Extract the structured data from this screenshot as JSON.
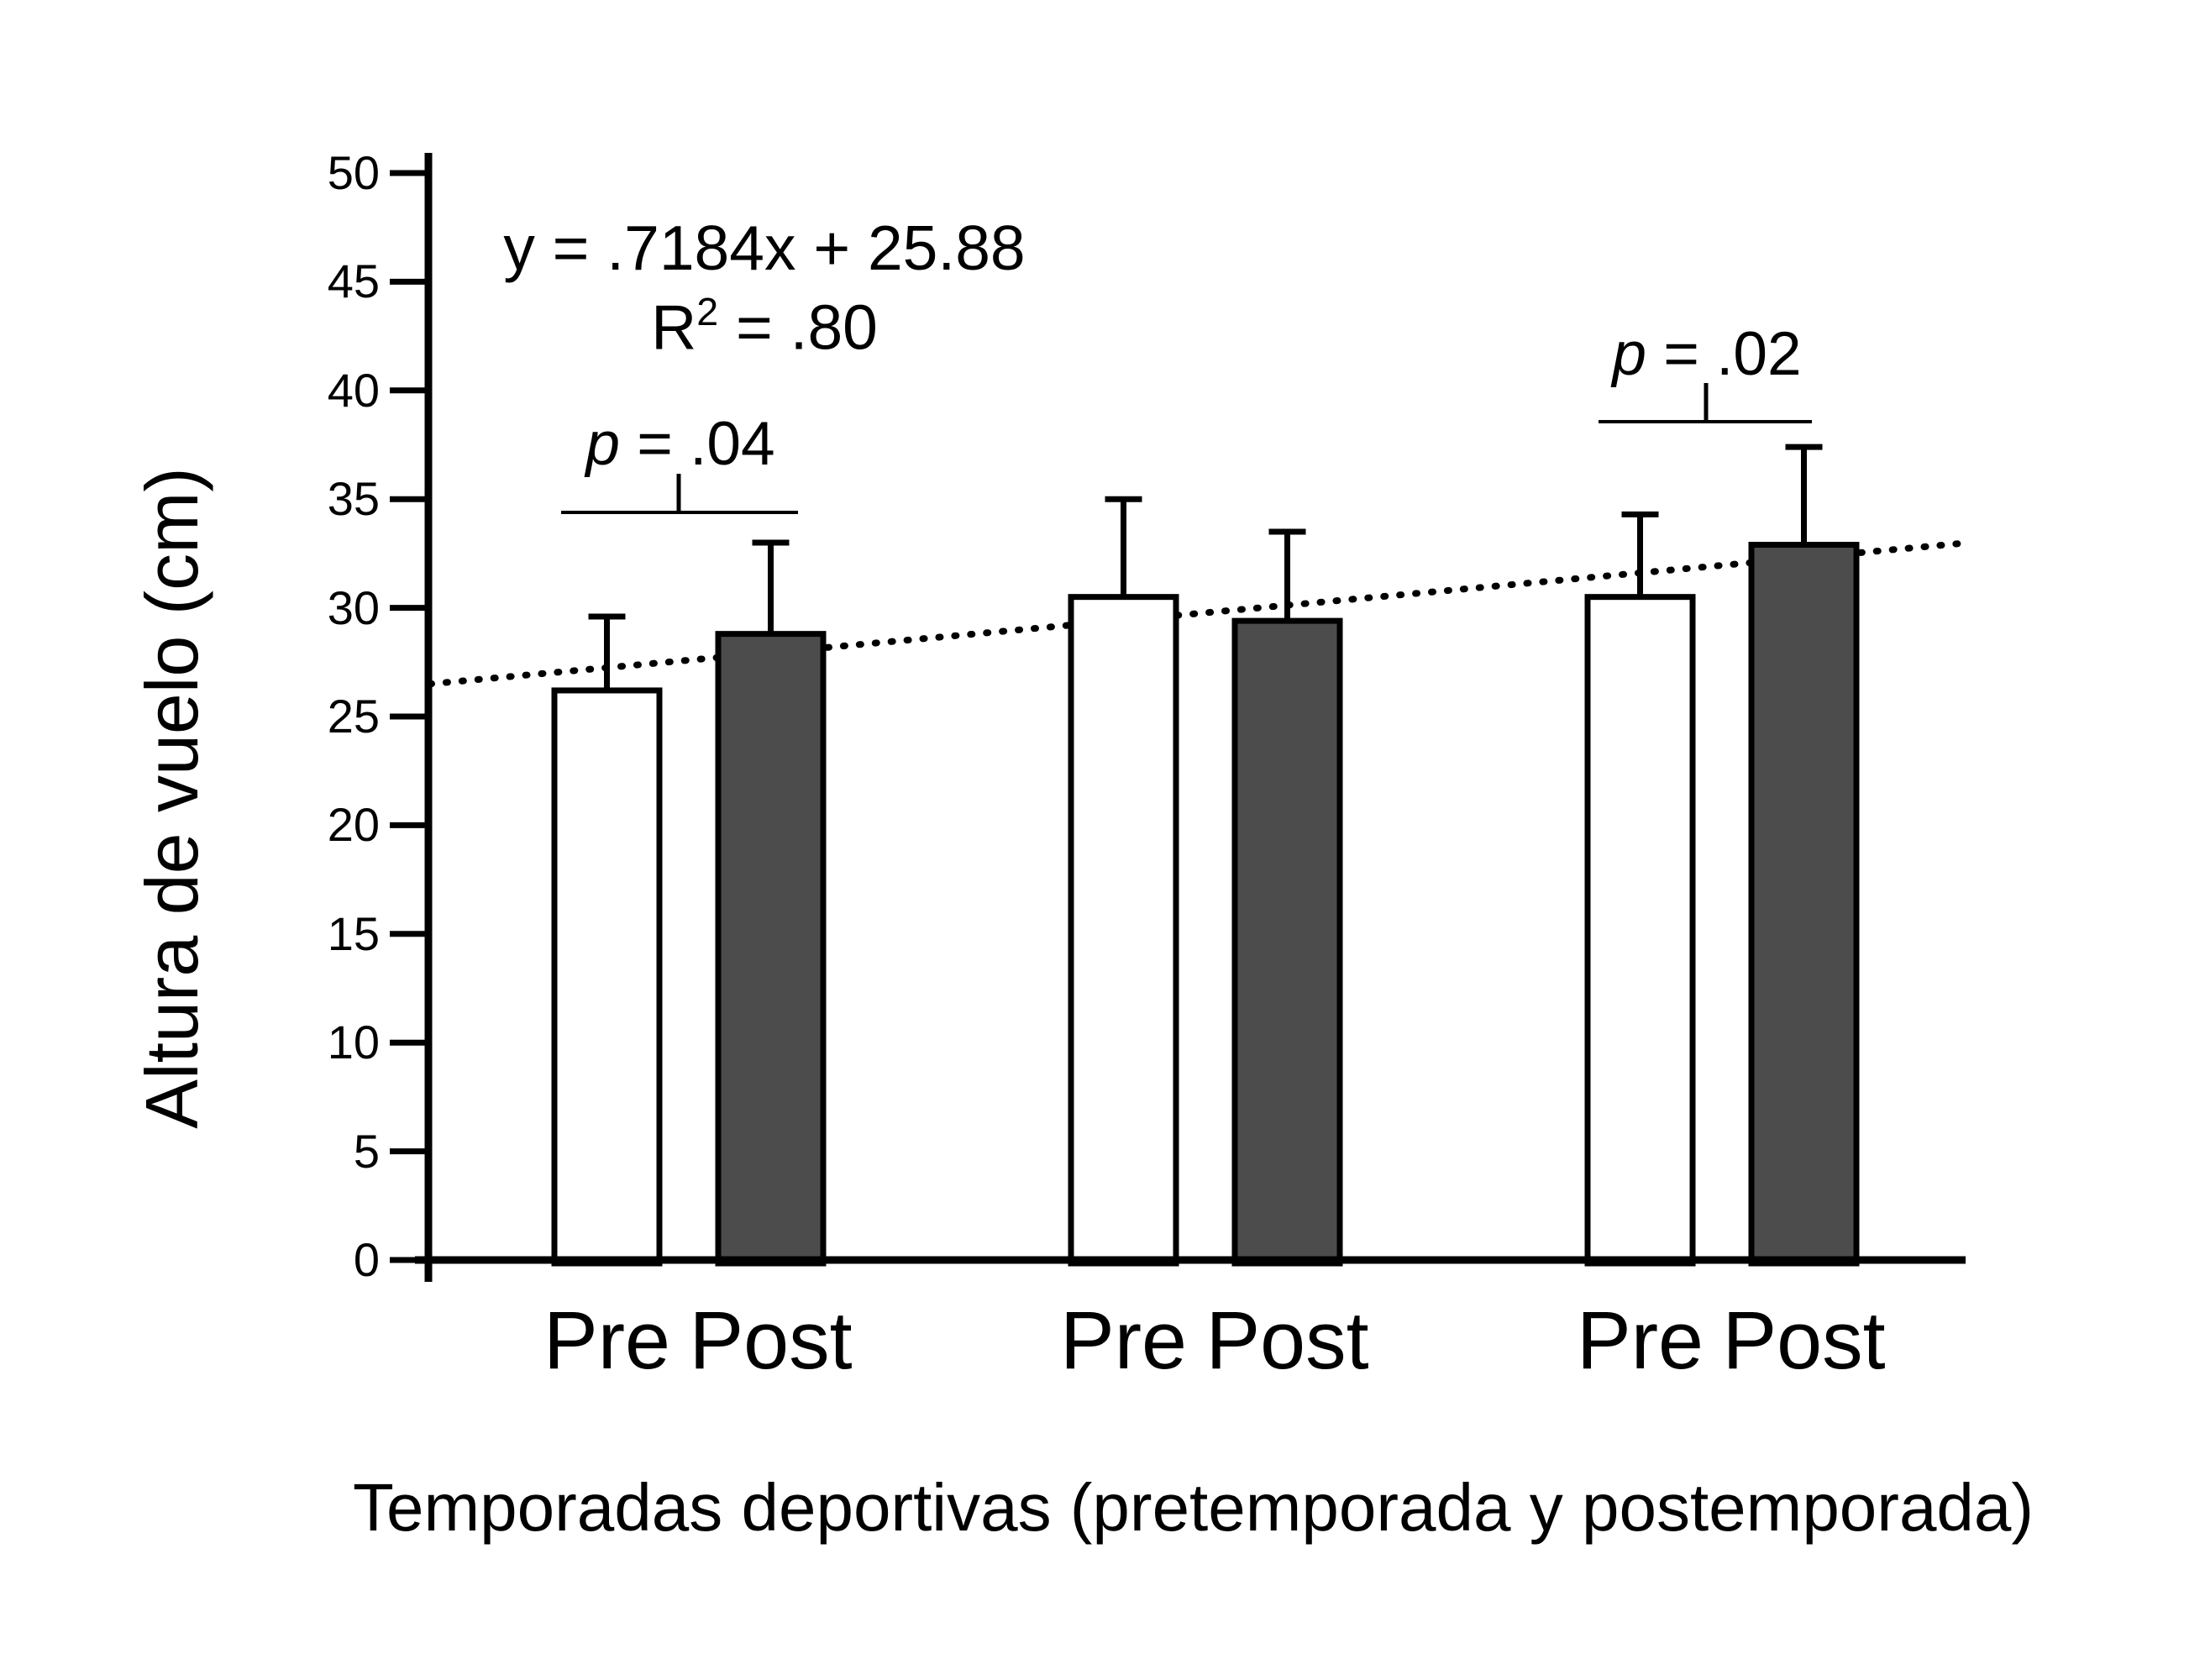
{
  "chart_data": {
    "type": "bar",
    "title": "",
    "ylabel": "Altura de vuelo (cm)",
    "xlabel": "Temporadas deportivas (pretemporada y postemporada)",
    "ylim": [
      0,
      50
    ],
    "yticks": [
      0,
      5,
      10,
      15,
      20,
      25,
      30,
      35,
      40,
      45,
      50
    ],
    "grid": false,
    "legend": "none",
    "bar_colors": {
      "pre": "#ffffff",
      "post": "#4c4c4c"
    },
    "bar_border_color": "#000000",
    "groups": [
      {
        "categories": [
          "Pre",
          "Post"
        ],
        "values": [
          26.2,
          28.8
        ],
        "error_upper": [
          3.4,
          4.2
        ]
      },
      {
        "categories": [
          "Pre",
          "Post"
        ],
        "values": [
          30.5,
          29.4
        ],
        "error_upper": [
          4.5,
          4.1
        ]
      },
      {
        "categories": [
          "Pre",
          "Post"
        ],
        "values": [
          30.5,
          32.9
        ],
        "error_upper": [
          3.8,
          4.5
        ]
      }
    ],
    "trendline": {
      "style": "dotted",
      "color": "#000000",
      "start_value": 26.5,
      "end_value": 33.0,
      "equation_text": "y = .7184x + 25.88",
      "r2_prefix": "R",
      "r2_superscript": "2",
      "r2_value_text": " = .80"
    },
    "annotations": [
      {
        "italic": "p",
        "text": " = .04",
        "group_index": 0
      },
      {
        "italic": "p",
        "text": " = .02",
        "group_index": 2
      }
    ]
  }
}
